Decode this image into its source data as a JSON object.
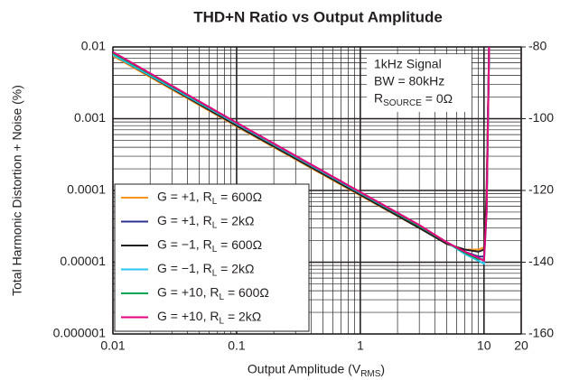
{
  "chart_data": {
    "type": "line",
    "title": "THD+N Ratio vs Output Amplitude",
    "x_label": "Output Amplitude (VRMS)",
    "y_label": "Total Harmonic Distortion + Noise (%)",
    "annotation": [
      "1kHz Signal",
      "BW = 80kHz",
      "RSOURCE = 0Ω"
    ],
    "x": [
      0.01,
      0.1,
      1,
      3,
      5,
      7,
      9,
      10,
      10.5,
      11
    ],
    "series": [
      {
        "name": "G = +1, RL = 600Ω",
        "color": "#f7941d",
        "values": [
          0.0075,
          0.00078,
          8.5e-05,
          3e-05,
          1.8e-05,
          1.5e-05,
          1.5e-05,
          1.6e-05,
          0.0001,
          0.01
        ]
      },
      {
        "name": "G = +1, RL = 2kΩ",
        "color": "#2e3192",
        "values": [
          0.0083,
          0.00086,
          9.3e-05,
          3.2e-05,
          1.9e-05,
          1.4e-05,
          1.2e-05,
          1.2e-05,
          6e-05,
          0.01
        ]
      },
      {
        "name": "G = −1, RL = 600Ω",
        "color": "#231f20",
        "values": [
          0.0078,
          0.0008,
          8.7e-05,
          3e-05,
          1.8e-05,
          1.5e-05,
          1.4e-05,
          1.5e-05,
          9e-05,
          0.01
        ]
      },
      {
        "name": "G = −1, RL = 2kΩ",
        "color": "#29c5f6",
        "values": [
          0.0078,
          0.00085,
          9.2e-05,
          3.2e-05,
          1.9e-05,
          1.3e-05,
          1.05e-05,
          9.5e-06,
          5e-05,
          0.01
        ]
      },
      {
        "name": "G = +10, RL = 600Ω",
        "color": "#00a651",
        "values": [
          0.0082,
          0.00087,
          9.4e-05,
          3.2e-05,
          1.9e-05,
          1.35e-05,
          1.1e-05,
          1.1e-05,
          5e-05,
          0.01
        ]
      },
      {
        "name": "G = +10, RL = 2kΩ",
        "color": "#e6007e",
        "values": [
          0.0085,
          0.00088,
          9.5e-05,
          3.3e-05,
          1.9e-05,
          1.4e-05,
          1.15e-05,
          1.05e-05,
          5e-05,
          0.01
        ]
      }
    ],
    "xscale": "log",
    "yscale": "log",
    "xlim": [
      0.01,
      20
    ],
    "xticks": [
      0.01,
      0.1,
      1,
      10,
      20
    ],
    "ylim": [
      1e-06,
      0.01
    ],
    "yticks": [
      1e-06,
      1e-05,
      0.0001,
      0.001,
      0.01
    ],
    "y2lim": [
      -160,
      -80
    ],
    "y2ticks": [
      -160,
      -140,
      -120,
      -100,
      -80
    ],
    "grid": true
  }
}
